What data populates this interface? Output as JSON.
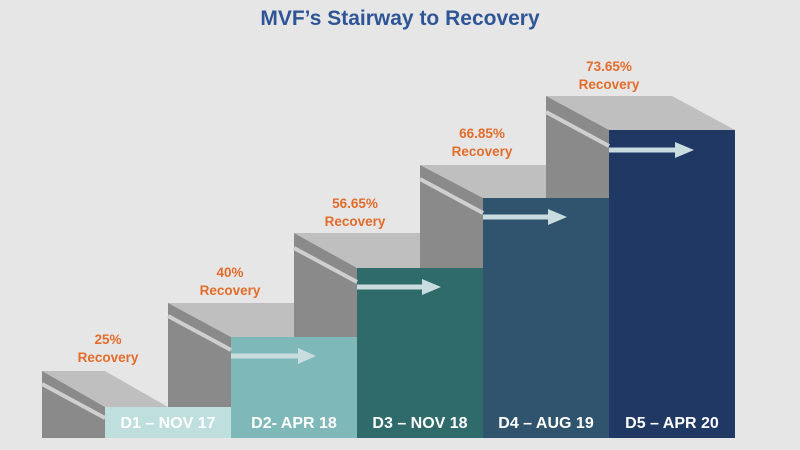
{
  "title": "MVF’s Stairway to Recovery",
  "steps": [
    {
      "label": "D1 – NOV 17",
      "percent": "25%",
      "recovery_label": "Recovery",
      "recovery_pct": 25,
      "face_color": "#bfdfdf"
    },
    {
      "label": "D2- APR 18",
      "percent": "40%",
      "recovery_label": "Recovery",
      "recovery_pct": 40,
      "face_color": "#7fb8b8"
    },
    {
      "label": "D3 – NOV 18",
      "percent": "56.65%",
      "recovery_label": "Recovery",
      "recovery_pct": 56.65,
      "face_color": "#2e6b6a"
    },
    {
      "label": "D4 – AUG 19",
      "percent": "66.85%",
      "recovery_label": "Recovery",
      "recovery_pct": 66.85,
      "face_color": "#31546e"
    },
    {
      "label": "D5 – APR 20",
      "percent": "73.65%",
      "recovery_label": "Recovery",
      "recovery_pct": 73.65,
      "face_color": "#1f3864"
    }
  ],
  "colors": {
    "title": "#2f5597",
    "percent_text": "#e46c2a",
    "step_top": "#bfbfbf",
    "step_side": "#8a8a8a",
    "arrow": "#c9dde0"
  }
}
